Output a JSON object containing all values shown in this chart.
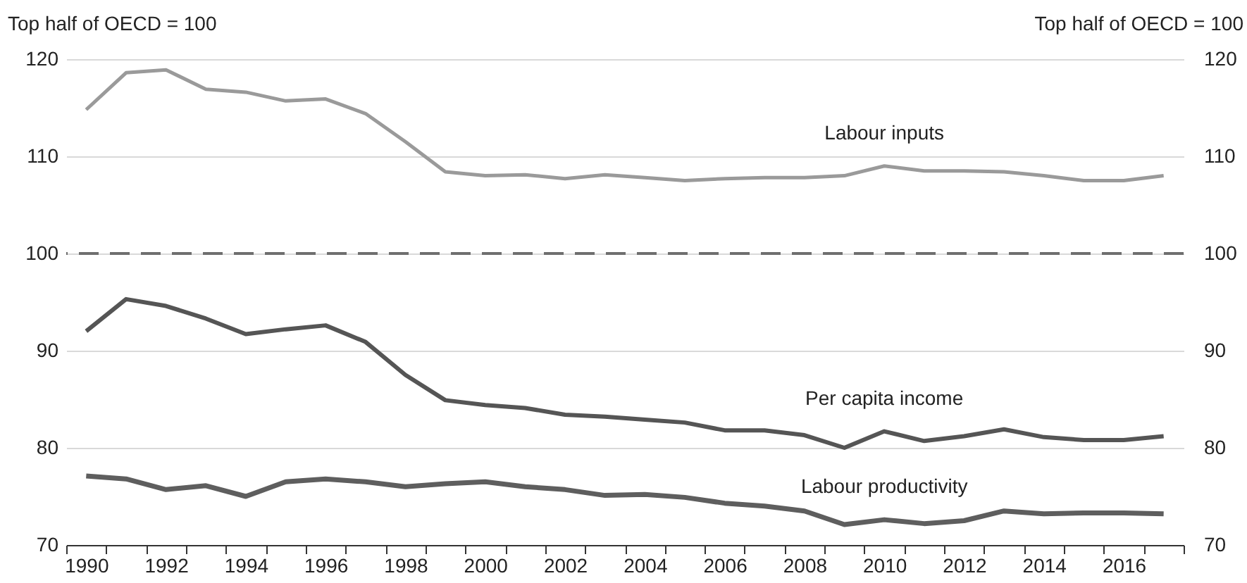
{
  "chart_data": {
    "type": "line",
    "ylabel": "Top half of OECD = 100",
    "y2label": "Top half of OECD = 100",
    "categories": [
      "1990",
      null,
      "1992",
      null,
      "1994",
      null,
      "1996",
      null,
      "1998",
      null,
      "2000",
      null,
      "2002",
      null,
      "2004",
      null,
      "2006",
      null,
      "2008",
      null,
      "2010",
      null,
      "2012",
      null,
      "2014",
      null,
      "2016",
      null
    ],
    "series": [
      {
        "name": "Labour inputs",
        "color": "#9a9a9a",
        "values": [
          114.8,
          118.6,
          118.9,
          116.9,
          116.6,
          115.7,
          115.9,
          114.4,
          111.5,
          108.4,
          108.0,
          108.1,
          107.7,
          108.1,
          107.8,
          107.5,
          107.7,
          107.8,
          107.8,
          108.0,
          109.0,
          108.5,
          108.5,
          108.4,
          108.0,
          107.5,
          107.5,
          108.0
        ]
      },
      {
        "name": "Per capita income",
        "color": "#555555",
        "values": [
          92.0,
          95.3,
          94.6,
          93.3,
          91.7,
          92.2,
          92.6,
          90.9,
          87.5,
          84.9,
          84.4,
          84.1,
          83.4,
          83.2,
          82.9,
          82.6,
          81.8,
          81.8,
          81.3,
          80.0,
          81.7,
          80.7,
          81.2,
          81.9,
          81.1,
          80.8,
          80.8,
          81.2
        ]
      },
      {
        "name": "Labour productivity",
        "color": "#5e5e5e",
        "values": [
          77.1,
          76.8,
          75.7,
          76.1,
          75.0,
          76.5,
          76.8,
          76.5,
          76.0,
          76.3,
          76.5,
          76.0,
          75.7,
          75.1,
          75.2,
          74.9,
          74.3,
          74.0,
          73.5,
          72.1,
          72.6,
          72.2,
          72.5,
          73.5,
          73.2,
          73.3,
          73.3,
          73.2
        ]
      }
    ],
    "ylim": [
      70,
      120
    ],
    "yticks": [
      70,
      80,
      90,
      100,
      110,
      120
    ],
    "y2lim": [
      70,
      120
    ],
    "y2ticks": [
      70,
      80,
      90,
      100,
      110,
      120
    ],
    "ref_lines": [
      {
        "axis": "y",
        "value": 100,
        "color": "#6e6e6e",
        "line_style": "dashed"
      }
    ],
    "grid": "y",
    "legend": false,
    "marker": "none",
    "line_style": "solid"
  }
}
